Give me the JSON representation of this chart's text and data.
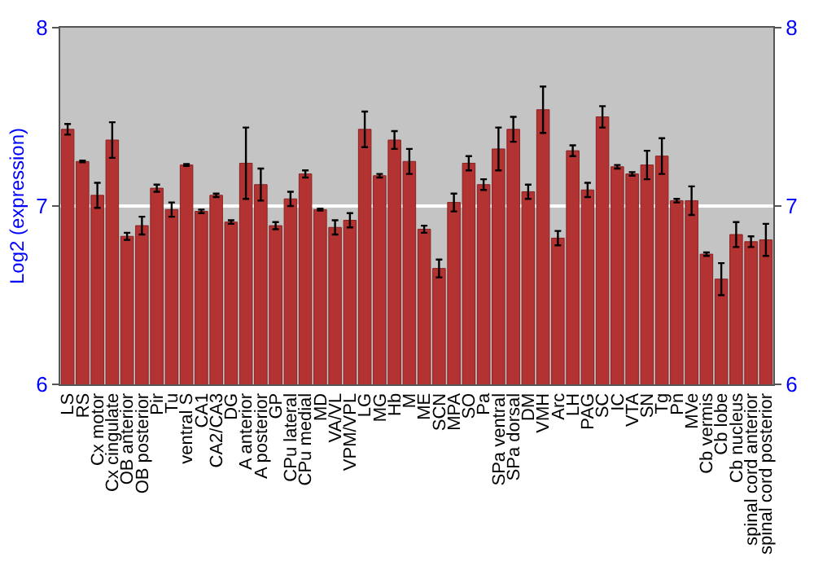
{
  "chart_data": {
    "type": "bar",
    "ylabel": "Log2 (expression)",
    "categories": [
      "LS",
      "RS",
      "Cx motor",
      "Cx cingulate",
      "OB anterior",
      "OB posterior",
      "Pir",
      "Tu",
      "ventral S",
      "CA1",
      "CA2/CA3",
      "DG",
      "A anterior",
      "A posterior",
      "GP",
      "CPu lateral",
      "CPu medial",
      "MD",
      "VA/VL",
      "VPM/VPL",
      "LG",
      "MG",
      "Hb",
      "M",
      "ME",
      "SCN",
      "MPA",
      "SO",
      "Pa",
      "SPa ventral",
      "SPa dorsal",
      "DM",
      "VMH",
      "Arc",
      "LH",
      "PAG",
      "SC",
      "IC",
      "VTA",
      "SN",
      "Tg",
      "Pn",
      "MVe",
      "Cb vermis",
      "Cb lobe",
      "Cb nucleus",
      "spinal cord anterior",
      "spinal cord posterior"
    ],
    "values": [
      7.43,
      7.25,
      7.06,
      7.37,
      6.83,
      6.89,
      7.1,
      6.98,
      7.23,
      6.97,
      7.06,
      6.91,
      7.24,
      7.12,
      6.89,
      7.04,
      7.18,
      6.98,
      6.88,
      6.92,
      7.43,
      7.17,
      7.37,
      7.25,
      6.87,
      6.65,
      7.02,
      7.24,
      7.12,
      7.32,
      7.43,
      7.08,
      7.54,
      6.82,
      7.31,
      7.09,
      7.5,
      7.22,
      7.18,
      7.23,
      7.28,
      7.03,
      7.03,
      6.73,
      6.59,
      6.84,
      6.8,
      6.81
    ],
    "errors": [
      0.03,
      0.005,
      0.07,
      0.1,
      0.02,
      0.05,
      0.02,
      0.04,
      0.005,
      0.01,
      0.01,
      0.01,
      0.2,
      0.09,
      0.02,
      0.04,
      0.02,
      0.005,
      0.04,
      0.04,
      0.1,
      0.01,
      0.05,
      0.07,
      0.02,
      0.05,
      0.05,
      0.04,
      0.03,
      0.12,
      0.07,
      0.04,
      0.13,
      0.04,
      0.03,
      0.04,
      0.06,
      0.01,
      0.01,
      0.08,
      0.1,
      0.01,
      0.08,
      0.01,
      0.09,
      0.07,
      0.03,
      0.09
    ],
    "color": "#b33333",
    "ylim": [
      6,
      8
    ],
    "yticks": [
      6,
      7,
      8
    ],
    "y2lim": [
      6,
      8
    ],
    "y2ticks": [
      6,
      7,
      8
    ],
    "grid": "y"
  }
}
